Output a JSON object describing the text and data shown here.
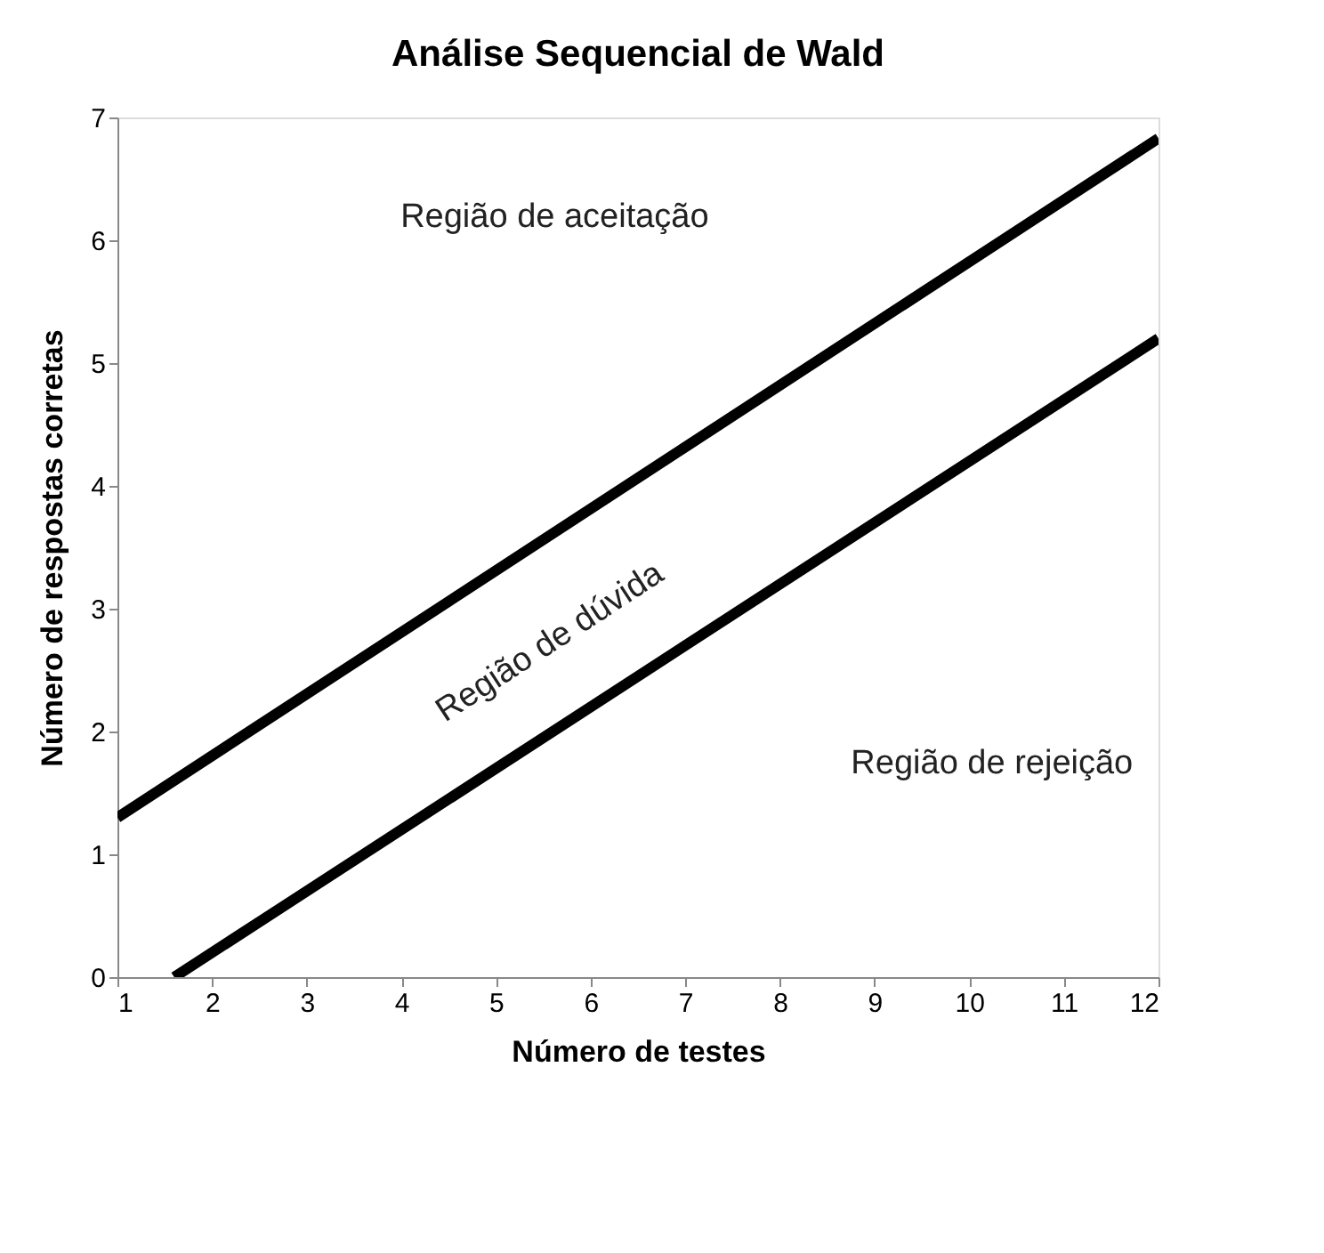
{
  "chart_data": {
    "type": "line",
    "title": "Análise Sequencial de Wald",
    "xlabel": "Número de testes",
    "ylabel": "Número de respostas corretas",
    "series": [
      {
        "color": "#000000",
        "x": [
          1,
          12
        ],
        "values": [
          1.3,
          6.83
        ]
      },
      {
        "color": "#000000",
        "x": [
          1.6,
          12
        ],
        "values": [
          0,
          5.2
        ]
      }
    ],
    "annotations": [
      "Região de aceitação",
      "Região de dúvida",
      "Região de rejeição"
    ],
    "xlim": [
      1,
      12
    ],
    "xticks": [
      1,
      2,
      3,
      4,
      5,
      6,
      7,
      8,
      9,
      10,
      11,
      12
    ],
    "ylim": [
      0,
      7
    ],
    "yticks": [
      0,
      1,
      2,
      3,
      4,
      5,
      6,
      7
    ],
    "grid": false,
    "legend": false,
    "marker": "none",
    "line_style": "solid"
  }
}
